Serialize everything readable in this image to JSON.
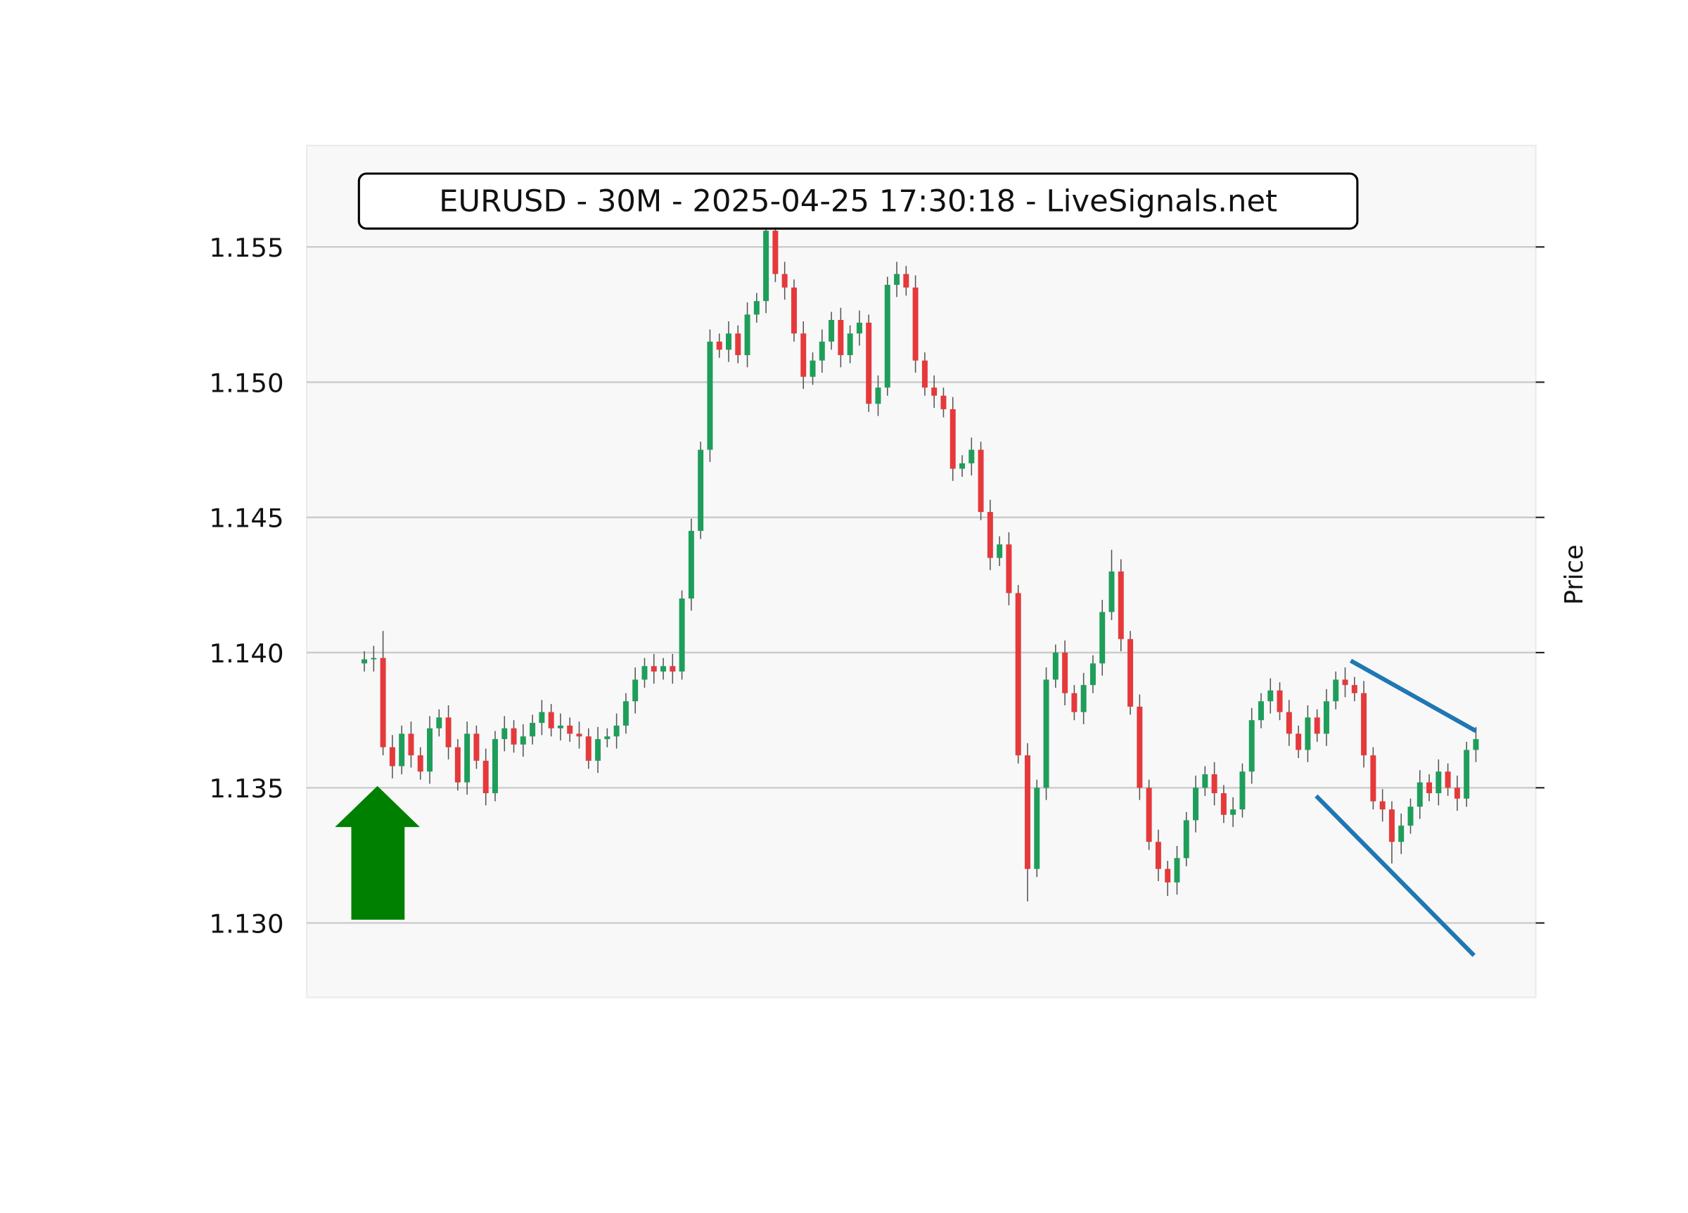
{
  "chart_data": {
    "type": "candlestick",
    "title": "EURUSD - 30M - 2025-04-25 17:30:18 - LiveSignals.net",
    "y_label": "Price",
    "ylim": [
      1.12725,
      1.15875
    ],
    "yticks": [
      {
        "value": 1.13,
        "label": "1.130"
      },
      1.135,
      {
        "value": 1.14,
        "label": "1.140"
      },
      1.145,
      {
        "value": 1.15,
        "label": "1.150"
      },
      1.155
    ],
    "grid": true,
    "up_color": "#1e9e5a",
    "down_color": "#e5393b",
    "wick_color": "#555555",
    "open": [
      1.1396,
      1.13975,
      1.1398,
      1.1365,
      1.1358,
      1.137,
      1.1362,
      1.1356,
      1.1372,
      1.1376,
      1.1365,
      1.1352,
      1.137,
      1.136,
      1.1348,
      1.1368,
      1.1372,
      1.1366,
      1.1369,
      1.1374,
      1.1378,
      1.1372,
      1.1373,
      1.137,
      1.1369,
      1.136,
      1.1368,
      1.1369,
      1.1373,
      1.1382,
      1.139,
      1.1395,
      1.1393,
      1.1395,
      1.1393,
      1.142,
      1.1445,
      1.1475,
      1.1515,
      1.1512,
      1.1518,
      1.151,
      1.1525,
      1.153,
      1.1556,
      1.154,
      1.1535,
      1.1518,
      1.1502,
      1.1508,
      1.1515,
      1.1523,
      1.151,
      1.1518,
      1.1522,
      1.1492,
      1.1498,
      1.1536,
      1.154,
      1.1535,
      1.1508,
      1.1498,
      1.1495,
      1.149,
      1.1468,
      1.147,
      1.1475,
      1.1452,
      1.1435,
      1.144,
      1.1422,
      1.1362,
      1.132,
      1.135,
      1.139,
      1.14,
      1.1385,
      1.1378,
      1.1388,
      1.1396,
      1.1415,
      1.143,
      1.1405,
      1.138,
      1.135,
      1.133,
      1.132,
      1.1315,
      1.1324,
      1.1338,
      1.135,
      1.1355,
      1.1348,
      1.134,
      1.1342,
      1.1356,
      1.1375,
      1.1382,
      1.1386,
      1.1378,
      1.137,
      1.1364,
      1.1376,
      1.137,
      1.1382,
      1.139,
      1.1388,
      1.1385,
      1.1362,
      1.1345,
      1.1342,
      1.133,
      1.1336,
      1.1343,
      1.1352,
      1.1348,
      1.1356,
      1.135,
      1.1346,
      1.1364
    ],
    "high": [
      1.14005,
      1.14025,
      1.1408,
      1.13695,
      1.1373,
      1.13745,
      1.1365,
      1.13765,
      1.1379,
      1.13805,
      1.1368,
      1.13745,
      1.1373,
      1.13645,
      1.1371,
      1.13765,
      1.1375,
      1.13735,
      1.1377,
      1.13825,
      1.1381,
      1.13775,
      1.1376,
      1.13745,
      1.1372,
      1.13725,
      1.1372,
      1.13775,
      1.1385,
      1.13945,
      1.1398,
      1.13995,
      1.1398,
      1.13995,
      1.1423,
      1.14495,
      1.1478,
      1.15195,
      1.1518,
      1.15225,
      1.1521,
      1.15295,
      1.1533,
      1.1575,
      1.1559,
      1.15445,
      1.1538,
      1.15225,
      1.1511,
      1.15195,
      1.1526,
      1.15275,
      1.1521,
      1.15265,
      1.1525,
      1.15025,
      1.1539,
      1.15445,
      1.1543,
      1.15395,
      1.1511,
      1.15025,
      1.1498,
      1.14945,
      1.1473,
      1.14795,
      1.1478,
      1.14565,
      1.1443,
      1.14445,
      1.1425,
      1.13665,
      1.1353,
      1.13945,
      1.1403,
      1.14045,
      1.1388,
      1.13925,
      1.1399,
      1.14195,
      1.1438,
      1.14345,
      1.1408,
      1.13845,
      1.1353,
      1.13345,
      1.1323,
      1.13285,
      1.1341,
      1.13545,
      1.1358,
      1.13595,
      1.1351,
      1.13465,
      1.1359,
      1.13795,
      1.1385,
      1.13905,
      1.1389,
      1.13825,
      1.1373,
      1.13805,
      1.1379,
      1.13865,
      1.1393,
      1.13945,
      1.1391,
      1.13895,
      1.1365,
      1.13495,
      1.1345,
      1.13405,
      1.1346,
      1.13565,
      1.1355,
      1.13605,
      1.1359,
      1.13545,
      1.1367,
      1.13725
    ],
    "low": [
      1.1393,
      1.1393,
      1.1362,
      1.13535,
      1.1355,
      1.13575,
      1.1353,
      1.13515,
      1.1369,
      1.13605,
      1.1349,
      1.13475,
      1.1357,
      1.13435,
      1.1345,
      1.13635,
      1.1363,
      1.13615,
      1.1366,
      1.13695,
      1.1369,
      1.13675,
      1.1367,
      1.13645,
      1.1357,
      1.13555,
      1.1365,
      1.13645,
      1.137,
      1.13775,
      1.1387,
      1.13885,
      1.139,
      1.13885,
      1.139,
      1.14155,
      1.1442,
      1.14705,
      1.1509,
      1.15075,
      1.1507,
      1.15055,
      1.1522,
      1.15255,
      1.1537,
      1.15305,
      1.1515,
      1.14975,
      1.1499,
      1.15035,
      1.1512,
      1.15055,
      1.1507,
      1.15135,
      1.1489,
      1.14875,
      1.1495,
      1.15315,
      1.1532,
      1.15035,
      1.1495,
      1.14905,
      1.1487,
      1.14635,
      1.1465,
      1.14655,
      1.1449,
      1.14305,
      1.1432,
      1.14175,
      1.1359,
      1.1308,
      1.1317,
      1.13455,
      1.1387,
      1.13805,
      1.1375,
      1.13735,
      1.1385,
      1.13915,
      1.1412,
      1.14005,
      1.1377,
      1.13455,
      1.1327,
      1.13155,
      1.131,
      1.13105,
      1.1321,
      1.13335,
      1.1347,
      1.13435,
      1.1337,
      1.13355,
      1.1339,
      1.13515,
      1.1372,
      1.13775,
      1.1375,
      1.13655,
      1.1361,
      1.13595,
      1.1367,
      1.13655,
      1.1379,
      1.13835,
      1.1382,
      1.13575,
      1.1342,
      1.13375,
      1.1322,
      1.13255,
      1.1333,
      1.13385,
      1.1345,
      1.13435,
      1.1347,
      1.13415,
      1.1343,
      1.13595
    ],
    "close": [
      1.13975,
      1.1398,
      1.1365,
      1.1358,
      1.137,
      1.1362,
      1.1356,
      1.1372,
      1.1376,
      1.1365,
      1.1352,
      1.137,
      1.136,
      1.1348,
      1.1368,
      1.1372,
      1.1366,
      1.1369,
      1.1374,
      1.1378,
      1.1372,
      1.1373,
      1.137,
      1.1369,
      1.136,
      1.1368,
      1.1369,
      1.1373,
      1.1382,
      1.139,
      1.1395,
      1.1393,
      1.1395,
      1.1393,
      1.142,
      1.1445,
      1.1475,
      1.1515,
      1.1512,
      1.1518,
      1.151,
      1.1525,
      1.153,
      1.1556,
      1.154,
      1.1535,
      1.1518,
      1.1502,
      1.1508,
      1.1515,
      1.1523,
      1.151,
      1.1518,
      1.1522,
      1.1492,
      1.1498,
      1.1536,
      1.154,
      1.1535,
      1.1508,
      1.1498,
      1.1495,
      1.149,
      1.1468,
      1.147,
      1.1475,
      1.1452,
      1.1435,
      1.144,
      1.1422,
      1.1362,
      1.132,
      1.135,
      1.139,
      1.14,
      1.1385,
      1.1378,
      1.1388,
      1.1396,
      1.1415,
      1.143,
      1.1405,
      1.138,
      1.135,
      1.133,
      1.132,
      1.1315,
      1.1324,
      1.1338,
      1.135,
      1.1355,
      1.1348,
      1.134,
      1.1342,
      1.1356,
      1.1375,
      1.1382,
      1.1386,
      1.1378,
      1.137,
      1.1364,
      1.1376,
      1.137,
      1.1382,
      1.139,
      1.1388,
      1.1385,
      1.1362,
      1.1345,
      1.1342,
      1.133,
      1.1336,
      1.1343,
      1.1352,
      1.1348,
      1.1356,
      1.135,
      1.1346,
      1.1364,
      1.1368
    ],
    "trendline_color": "#1f77b4",
    "trendlines": [
      {
        "x": [
          105.6,
          119
        ],
        "y": [
          1.1397,
          1.1371
        ]
      },
      {
        "x": [
          101.9,
          118.8
        ],
        "y": [
          1.1347,
          1.1288
        ]
      }
    ]
  }
}
